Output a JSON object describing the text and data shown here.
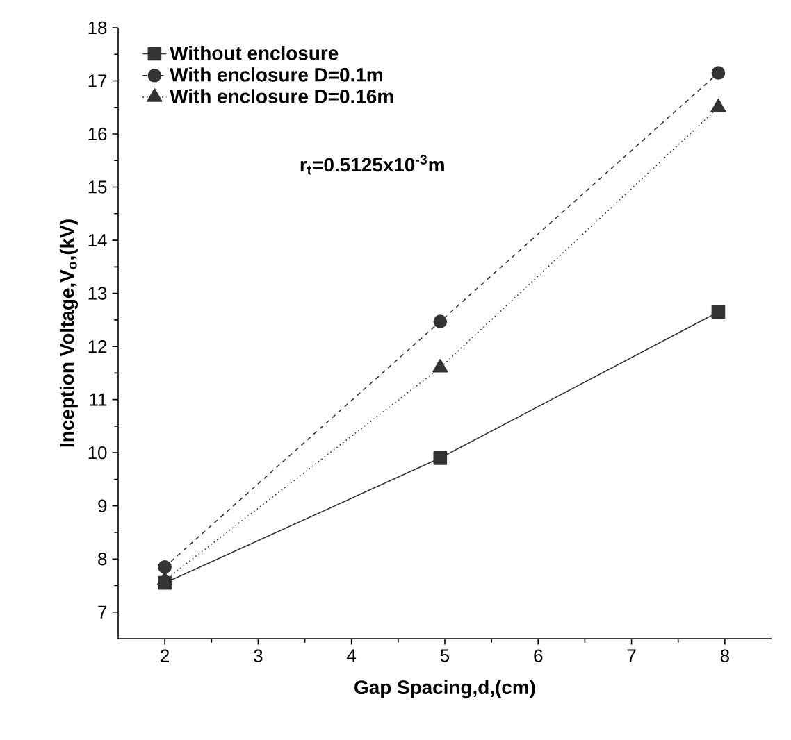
{
  "chart_data": {
    "type": "line",
    "xlabel": "Gap Spacing,d,(cm)",
    "ylabel": "Inception Voltage,V$_{o}$,(kV)",
    "xlim": [
      1.5,
      8.5
    ],
    "xticks": [
      2,
      3,
      4,
      5,
      6,
      7,
      8
    ],
    "ylim": [
      6.5,
      18
    ],
    "yticks": [
      7,
      8,
      9,
      10,
      11,
      12,
      13,
      14,
      15,
      16,
      17,
      18
    ],
    "legend": "top left",
    "grid": false,
    "annotations": [
      "r$_{t}$=0.5125x10$^{-3}$m"
    ],
    "series": [
      {
        "name": "Without enclosure",
        "color": "#333333",
        "marker": "square",
        "line_style": "solid",
        "x": [
          2,
          4.95,
          7.93
        ],
        "values": [
          7.55,
          9.9,
          12.65
        ]
      },
      {
        "name": "With enclosure      D=0.1m",
        "color": "#333333",
        "marker": "circle",
        "line_style": "dashed",
        "x": [
          2,
          4.95,
          7.93
        ],
        "values": [
          7.85,
          12.47,
          17.15
        ]
      },
      {
        "name": "With enclosure      D=0.16m",
        "color": "#333333",
        "marker": "triangle",
        "line_style": "dotted",
        "x": [
          2,
          4.95,
          7.93
        ],
        "values": [
          7.6,
          11.6,
          16.5
        ]
      }
    ]
  }
}
